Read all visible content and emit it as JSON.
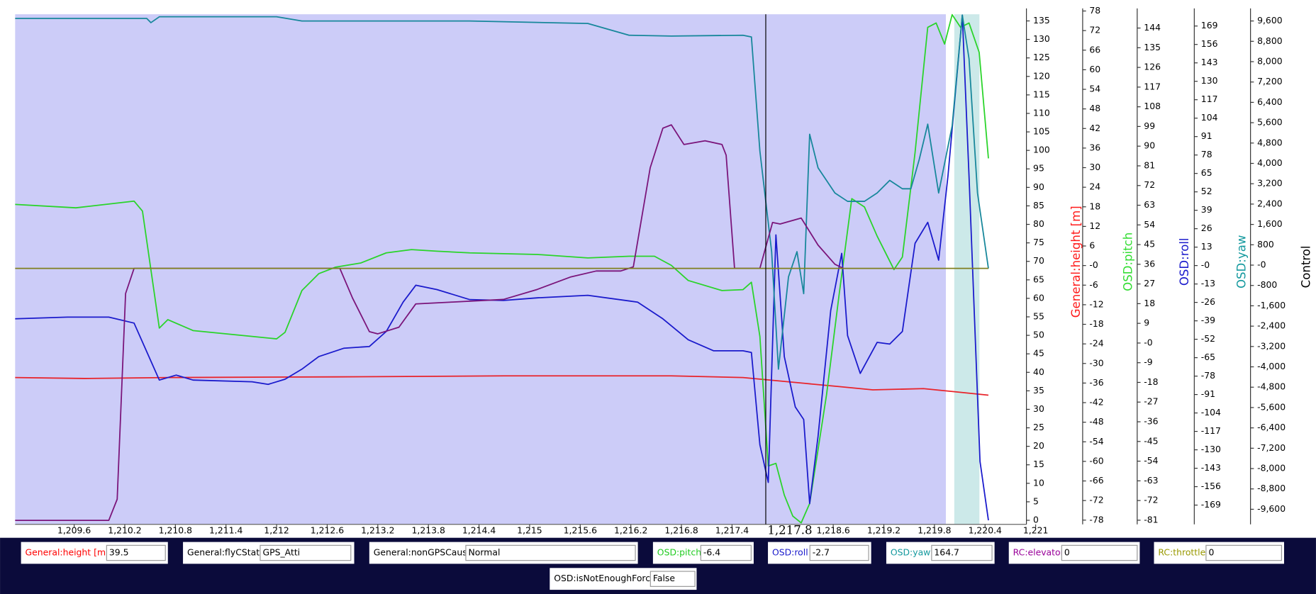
{
  "chart_data": {
    "type": "line",
    "xlim": [
      1208.9,
      1221
    ],
    "xticks": [
      {
        "value": 1209.6,
        "label": "1,209.6"
      },
      {
        "value": 1210.2,
        "label": "1,210.2"
      },
      {
        "value": 1210.8,
        "label": "1,210.8"
      },
      {
        "value": 1211.4,
        "label": "1,211.4"
      },
      {
        "value": 1212,
        "label": "1,212"
      },
      {
        "value": 1212.6,
        "label": "1,212.6"
      },
      {
        "value": 1213.2,
        "label": "1,213.2"
      },
      {
        "value": 1213.8,
        "label": "1,213.8"
      },
      {
        "value": 1214.4,
        "label": "1,214.4"
      },
      {
        "value": 1215,
        "label": "1,215"
      },
      {
        "value": 1215.6,
        "label": "1,215.6"
      },
      {
        "value": 1216.2,
        "label": "1,216.2"
      },
      {
        "value": 1216.8,
        "label": "1,216.8"
      },
      {
        "value": 1217.4,
        "label": "1,217.4"
      },
      {
        "value": 1218.6,
        "label": "1,218.6"
      },
      {
        "value": 1219.2,
        "label": "1,219.2"
      },
      {
        "value": 1219.8,
        "label": "1,219.8"
      },
      {
        "value": 1220.4,
        "label": "1,220.4"
      },
      {
        "value": 1221,
        "label": "1,221"
      }
    ],
    "cursor": {
      "value": 1217.8,
      "label": "1,217.8"
    },
    "y_axes": [
      {
        "name": "Control",
        "color": "#000000",
        "ylim": [
          -1.1,
          136.8
        ],
        "yticks": [
          0,
          5,
          10,
          15,
          20,
          25,
          30,
          35,
          40,
          45,
          50,
          55,
          60,
          65,
          70,
          75,
          80,
          85,
          90,
          95,
          100,
          105,
          110,
          115,
          120,
          125,
          130,
          135
        ]
      },
      {
        "name": "General:height [m]",
        "color": "#ff1a1a",
        "ylim": [
          -79.3,
          77
        ],
        "yticks": [
          -78,
          -72,
          -66,
          -60,
          -54,
          -48,
          -42,
          -36,
          -30,
          -24,
          -18,
          -12,
          -6,
          {
            "value": 0,
            "label": "-0"
          },
          6,
          12,
          18,
          24,
          30,
          36,
          42,
          48,
          54,
          60,
          66,
          72,
          78
        ]
      },
      {
        "name": "OSD:pitch",
        "color": "#33dd33",
        "ylim": [
          -82.9,
          150.3
        ],
        "yticks": [
          -81,
          -72,
          -63,
          -54,
          -45,
          -36,
          -27,
          -18,
          -9,
          {
            "value": 0,
            "label": "-0"
          },
          9,
          18,
          27,
          36,
          45,
          54,
          63,
          72,
          81,
          90,
          99,
          108,
          117,
          126,
          135,
          144
        ]
      },
      {
        "name": "OSD:roll",
        "color": "#1a1acc",
        "ylim": [
          -182.6,
          177.3
        ],
        "yticks": [
          -169,
          -156,
          -143,
          -130,
          -117,
          -104,
          -91,
          -78,
          -65,
          -52,
          -39,
          -26,
          -13,
          {
            "value": 0,
            "label": "-0"
          },
          13,
          26,
          39,
          52,
          65,
          78,
          91,
          104,
          117,
          130,
          143,
          156,
          169
        ]
      },
      {
        "name": "OSD:yaw",
        "color": "#14999e",
        "ylim": [
          -10194,
          9864
        ],
        "yticks": [
          {
            "value": -9600,
            "label": "-9,600"
          },
          {
            "value": -8800,
            "label": "-8,800"
          },
          {
            "value": -8000,
            "label": "-8,000"
          },
          {
            "value": -7200,
            "label": "-7,200"
          },
          {
            "value": -6400,
            "label": "-6,400"
          },
          {
            "value": -5600,
            "label": "-5,600"
          },
          {
            "value": -4800,
            "label": "-4,800"
          },
          {
            "value": -4000,
            "label": "-4,000"
          },
          {
            "value": -3200,
            "label": "-3,200"
          },
          {
            "value": -2400,
            "label": "-2,400"
          },
          {
            "value": -1600,
            "label": "-1,600"
          },
          -800,
          {
            "value": 0,
            "label": "-0"
          },
          800,
          {
            "value": 1600,
            "label": "1,600"
          },
          {
            "value": 2400,
            "label": "2,400"
          },
          {
            "value": 3200,
            "label": "3,200"
          },
          {
            "value": 4000,
            "label": "4,000"
          },
          {
            "value": 4800,
            "label": "4,800"
          },
          {
            "value": 5600,
            "label": "5,600"
          },
          {
            "value": 6400,
            "label": "6,400"
          },
          {
            "value": 7200,
            "label": "7,200"
          },
          {
            "value": 8000,
            "label": "8,000"
          },
          {
            "value": 8800,
            "label": "8,800"
          },
          {
            "value": 9600,
            "label": "9,600"
          }
        ]
      }
    ],
    "series": [
      {
        "name": "General:height [m]",
        "color": "#e8242b",
        "axis": 1,
        "x": [
          1208.9,
          1209.72,
          1210.71,
          1212.7,
          1214.69,
          1216.68,
          1217.53,
          1218.27,
          1218.67,
          1219.07,
          1219.67,
          1220.06,
          1220.44
        ],
        "values": [
          -34.3,
          -34.6,
          -34.3,
          -34.1,
          -33.8,
          -33.8,
          -34.3,
          -36.1,
          -37.1,
          -38.1,
          -37.7,
          -38.7,
          -39.7
        ]
      },
      {
        "name": "OSD:pitch",
        "color": "#2ad42a",
        "axis": 2,
        "x": [
          1208.9,
          1209.62,
          1210.31,
          1210.41,
          1210.61,
          1210.71,
          1211.01,
          1211.71,
          1212.0,
          1212.1,
          1212.3,
          1212.5,
          1212.7,
          1213.0,
          1213.3,
          1213.6,
          1213.9,
          1214.29,
          1215.09,
          1215.69,
          1216.18,
          1216.48,
          1216.68,
          1216.88,
          1217.28,
          1217.53,
          1217.63,
          1217.73,
          1217.83,
          1217.92,
          1218.02,
          1218.12,
          1218.22,
          1218.32,
          1218.52,
          1218.67,
          1218.82,
          1218.97,
          1219.12,
          1219.32,
          1219.42,
          1219.57,
          1219.72,
          1219.82,
          1219.92,
          1220.01,
          1220.11,
          1220.21,
          1220.33,
          1220.44
        ],
        "values": [
          63.4,
          61.8,
          64.9,
          60.3,
          6.8,
          10.7,
          5.7,
          3.0,
          1.9,
          4.9,
          24.0,
          31.7,
          34.7,
          36.6,
          41.2,
          42.7,
          42.0,
          41.2,
          40.5,
          38.9,
          39.7,
          39.7,
          35.5,
          28.6,
          24.0,
          24.4,
          27.8,
          3.0,
          -56.2,
          -55.0,
          -69.5,
          -79.1,
          -82.2,
          -73.4,
          -23.7,
          22.1,
          66.0,
          62.2,
          48.9,
          33.6,
          39.3,
          87.1,
          144.3,
          146.3,
          136.7,
          150.1,
          144.3,
          146.3,
          132.9,
          84.4
        ]
      },
      {
        "name": "OSD:roll",
        "color": "#1a1acc",
        "axis": 3,
        "x": [
          1208.9,
          1209.52,
          1210.01,
          1210.31,
          1210.61,
          1210.81,
          1211.01,
          1211.71,
          1211.9,
          1212.1,
          1212.3,
          1212.5,
          1212.8,
          1213.1,
          1213.3,
          1213.5,
          1213.65,
          1213.9,
          1214.29,
          1214.69,
          1215.09,
          1215.69,
          1216.28,
          1216.58,
          1216.88,
          1217.18,
          1217.53,
          1217.63,
          1217.73,
          1217.83,
          1217.92,
          1218.02,
          1218.15,
          1218.25,
          1218.32,
          1218.42,
          1218.57,
          1218.7,
          1218.77,
          1218.92,
          1219.12,
          1219.27,
          1219.42,
          1219.57,
          1219.72,
          1219.85,
          1219.96,
          1220.13,
          1220.21,
          1220.34,
          1220.44
        ],
        "values": [
          -37.6,
          -36.4,
          -36.4,
          -40.6,
          -80.8,
          -77.3,
          -80.8,
          -82.0,
          -83.8,
          -80.2,
          -73.1,
          -64.2,
          -58.3,
          -57.1,
          -46.5,
          -25.8,
          -13.9,
          -16.9,
          -24.0,
          -24.6,
          -22.8,
          -21.0,
          -25.8,
          -37.6,
          -52.4,
          -60.1,
          -60.1,
          -61.3,
          -126.4,
          -153.0,
          21.6,
          -64.2,
          -99.8,
          -108.6,
          -167.9,
          -120.5,
          -31.7,
          8.6,
          -49.4,
          -76.1,
          -54.2,
          -55.4,
          -46.5,
          15.7,
          30.5,
          3.8,
          63.1,
          176.7,
          63.1,
          -138.2,
          -179.7
        ]
      },
      {
        "name": "OSD:yaw",
        "color": "#17879b",
        "axis": 4,
        "x": [
          1208.9,
          1210.46,
          1210.51,
          1210.61,
          1212.0,
          1212.3,
          1214.29,
          1215.69,
          1216.18,
          1216.68,
          1217.53,
          1217.63,
          1217.73,
          1217.87,
          1217.95,
          1218.07,
          1218.17,
          1218.25,
          1218.32,
          1218.42,
          1218.62,
          1218.77,
          1218.97,
          1219.12,
          1219.27,
          1219.42,
          1219.52,
          1219.62,
          1219.72,
          1219.85,
          1220.01,
          1220.13,
          1220.21,
          1220.31,
          1220.44
        ],
        "values": [
          9699,
          9699,
          9534,
          9765,
          9765,
          9600,
          9600,
          9501,
          9039,
          9006,
          9039,
          8973,
          4487,
          528,
          -4091,
          -462,
          528,
          -1122,
          5146,
          3827,
          2837,
          2507,
          2507,
          2837,
          3332,
          3002,
          3002,
          4157,
          5542,
          2837,
          5476,
          9831,
          8116,
          2837,
          -132
        ]
      },
      {
        "name": "RC:elevator",
        "color": "#7a147a",
        "axis": 0,
        "x": [
          1208.9,
          1210.01,
          1210.11,
          1210.21,
          1210.31,
          1212.75,
          1212.9,
          1213.1,
          1213.2,
          1213.45,
          1213.65,
          1214.09,
          1214.69,
          1215.09,
          1215.49,
          1215.79,
          1216.08,
          1216.23,
          1216.43,
          1216.58,
          1216.68,
          1216.83,
          1217.08,
          1217.28,
          1217.33,
          1217.43,
          1217.73,
          1217.88,
          1217.97,
          1218.22,
          1218.42,
          1218.62,
          1218.72
        ],
        "values": [
          0,
          0,
          5.7,
          61.3,
          68.1,
          68.1,
          60.1,
          51.0,
          50.4,
          52.2,
          58.5,
          59.0,
          59.7,
          62.4,
          65.8,
          67.4,
          67.4,
          68.5,
          95.3,
          106.0,
          106.9,
          101.6,
          102.6,
          101.6,
          98.7,
          68.1,
          68.1,
          80.5,
          80.1,
          81.7,
          74.4,
          69.2,
          68.1
        ]
      },
      {
        "name": "RC:throttle",
        "color": "#808020",
        "axis": 0,
        "x": [
          1208.9,
          1220.44
        ],
        "values": [
          68.1,
          68.1
        ]
      }
    ]
  },
  "readouts": [
    {
      "label": "General:height [m]",
      "color": "#ff0000",
      "value": "39.5"
    },
    {
      "label": "General:flyCState",
      "color": "#000000",
      "value": "GPS_Atti"
    },
    {
      "label": "General:nonGPSCause",
      "color": "#000000",
      "value": "Normal"
    },
    {
      "label": "OSD:pitch",
      "color": "#22cc22",
      "value": "-6.4"
    },
    {
      "label": "OSD:roll",
      "color": "#1a1acc",
      "value": "-2.7"
    },
    {
      "label": "OSD:yaw",
      "color": "#14999e",
      "value": "164.7"
    },
    {
      "label": "RC:elevator",
      "color": "#990099",
      "value": "0"
    },
    {
      "label": "RC:throttle",
      "color": "#999900",
      "value": "0"
    },
    {
      "label": "OSD:isNotEnoughForce",
      "color": "#000000",
      "value": "False"
    }
  ]
}
